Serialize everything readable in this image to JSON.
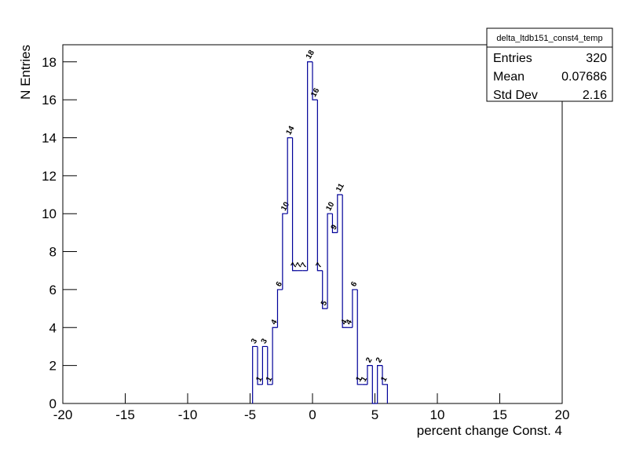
{
  "chart_data": {
    "type": "histogram",
    "bins": [
      -4.8,
      -4.4,
      -4.0,
      -3.6,
      -3.2,
      -2.8,
      -2.4,
      -2.0,
      -1.6,
      -1.2,
      -0.8,
      -0.4,
      0,
      0.4,
      0.8,
      1.2,
      1.6,
      2.0,
      2.4,
      2.8,
      3.2,
      3.6,
      4.0,
      4.4,
      4.8,
      5.2,
      5.6,
      6.0
    ],
    "values": [
      3,
      1,
      3,
      1,
      4,
      6,
      10,
      14,
      7,
      7,
      7,
      18,
      16,
      7,
      5,
      10,
      9,
      11,
      4,
      4,
      6,
      1,
      1,
      2,
      0,
      2,
      1
    ],
    "color": "#000099",
    "xlim": [
      -20,
      20
    ],
    "ylim": [
      0,
      18.9
    ],
    "xticks": [
      -20,
      -15,
      -10,
      -5,
      0,
      5,
      10,
      15,
      20
    ],
    "yticks": [
      0,
      2,
      4,
      6,
      8,
      10,
      12,
      14,
      16,
      18
    ],
    "x_label": "percent change Const. 4",
    "y_label": "N Entries",
    "stats": {
      "title": "delta_ltdb151_const4_temp",
      "rows": [
        {
          "label": "Entries",
          "value": 320
        },
        {
          "label": "Mean",
          "value": 0.07686
        },
        {
          "label": "Std Dev",
          "value": 2.16
        }
      ]
    }
  }
}
